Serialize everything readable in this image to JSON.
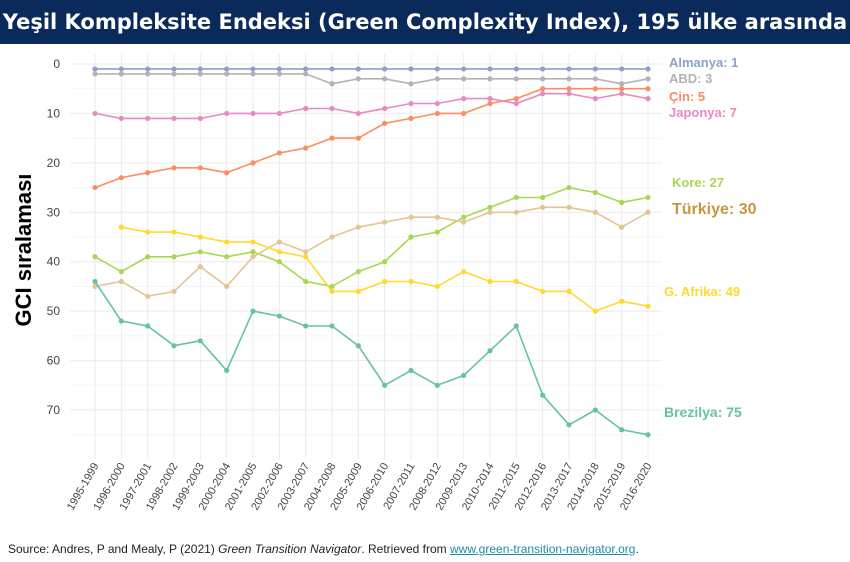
{
  "header": {
    "title": "Yeşil Kompleksite Endeksi (Green Complexity Index), 195 ülke arasında"
  },
  "source": {
    "prefix": "Source: Andres, P and Mealy, P (2021) ",
    "italic": "Green Transition Navigator",
    "middle": ". Retrieved from ",
    "link": "www.green-transition-navigator.org",
    "suffix": "."
  },
  "chart_data": {
    "type": "line",
    "ylabel": "GCI sıralaması",
    "ylim": [
      0,
      80
    ],
    "y_inverted": true,
    "y_ticks": [
      0,
      10,
      20,
      30,
      40,
      50,
      60,
      70
    ],
    "grid": true,
    "categories": [
      "1995-1999",
      "1996-2000",
      "1997-2001",
      "1998-2002",
      "1999-2003",
      "2000-2004",
      "2001-2005",
      "2002-2006",
      "2003-2007",
      "2004-2008",
      "2005-2009",
      "2006-2010",
      "2007-2011",
      "2008-2012",
      "2009-2013",
      "2010-2014",
      "2011-2015",
      "2012-2016",
      "2013-2017",
      "2014-2018",
      "2015-2019",
      "2016-2020"
    ],
    "series": [
      {
        "name": "Almanya",
        "label": "Almanya: 1",
        "color": "#8da0cb",
        "label_bold": false,
        "values": [
          1,
          1,
          1,
          1,
          1,
          1,
          1,
          1,
          1,
          1,
          1,
          1,
          1,
          1,
          1,
          1,
          1,
          1,
          1,
          1,
          1,
          1
        ]
      },
      {
        "name": "ABD",
        "label": "ABD: 3",
        "color": "#b3b3b3",
        "label_bold": false,
        "values": [
          2,
          2,
          2,
          2,
          2,
          2,
          2,
          2,
          2,
          4,
          3,
          3,
          4,
          3,
          3,
          3,
          3,
          3,
          3,
          3,
          4,
          3
        ]
      },
      {
        "name": "Çin",
        "label": "Çin: 5",
        "color": "#fc8d62",
        "label_bold": false,
        "values": [
          25,
          23,
          22,
          21,
          21,
          22,
          20,
          18,
          17,
          15,
          15,
          12,
          11,
          10,
          10,
          8,
          7,
          5,
          5,
          5,
          5,
          5
        ]
      },
      {
        "name": "Japonya",
        "label": "Japonya: 7",
        "color": "#e78ac3",
        "label_bold": false,
        "values": [
          10,
          11,
          11,
          11,
          11,
          10,
          10,
          10,
          9,
          9,
          10,
          9,
          8,
          8,
          7,
          7,
          8,
          6,
          6,
          7,
          6,
          7
        ]
      },
      {
        "name": "Kore",
        "label": "Kore: 27",
        "color": "#a6d854",
        "label_bold": false,
        "values": [
          39,
          42,
          39,
          39,
          38,
          39,
          38,
          40,
          44,
          45,
          42,
          40,
          35,
          34,
          31,
          29,
          27,
          27,
          25,
          26,
          28,
          27
        ]
      },
      {
        "name": "Türkiye",
        "label": "Türkiye: 30",
        "color": "#e5c494",
        "label_bold": true,
        "values": [
          45,
          44,
          47,
          46,
          41,
          45,
          39,
          36,
          38,
          35,
          33,
          32,
          31,
          31,
          32,
          30,
          30,
          29,
          29,
          30,
          33,
          30
        ]
      },
      {
        "name": "G. Afrika",
        "label": "G. Afrika: 49",
        "color": "#ffd92f",
        "label_bold": false,
        "values": [
          null,
          33,
          34,
          34,
          35,
          36,
          36,
          38,
          39,
          46,
          46,
          44,
          44,
          45,
          42,
          44,
          44,
          46,
          46,
          50,
          48,
          49
        ]
      },
      {
        "name": "Brezilya",
        "label": "Brezilya: 75",
        "color": "#66c2a5",
        "label_bold": false,
        "values": [
          44,
          52,
          53,
          57,
          56,
          62,
          50,
          51,
          53,
          53,
          57,
          65,
          62,
          65,
          63,
          58,
          53,
          67,
          73,
          70,
          74,
          75
        ]
      }
    ],
    "label_colors": {
      "Almanya": "#8da0cb",
      "ABD": "#b3b3b3",
      "Çin": "#fc8d62",
      "Japonya": "#e78ac3",
      "Kore": "#a6d854",
      "Türkiye": "#c9963e",
      "G. Afrika": "#ffd92f",
      "Brezilya": "#66c2a5"
    }
  }
}
